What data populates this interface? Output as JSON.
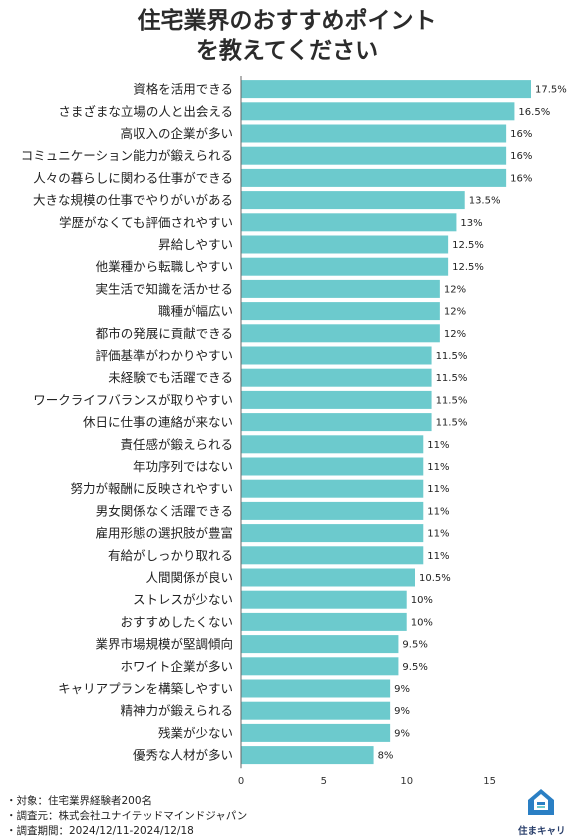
{
  "title_line1": "住宅業界のおすすめポイント",
  "title_line2": "を教えてください",
  "chart_data": {
    "type": "bar",
    "orientation": "horizontal",
    "categories": [
      "資格を活用できる",
      "さまざまな立場の人と出会える",
      "高収入の企業が多い",
      "コミュニケーション能力が鍛えられる",
      "人々の暮らしに関わる仕事ができる",
      "大きな規模の仕事でやりがいがある",
      "学歴がなくても評価されやすい",
      "昇給しやすい",
      "他業種から転職しやすい",
      "実生活で知識を活かせる",
      "職種が幅広い",
      "都市の発展に貢献できる",
      "評価基準がわかりやすい",
      "未経験でも活躍できる",
      "ワークライフバランスが取りやすい",
      "休日に仕事の連絡が来ない",
      "責任感が鍛えられる",
      "年功序列ではない",
      "努力が報酬に反映されやすい",
      "男女関係なく活躍できる",
      "雇用形態の選択肢が豊富",
      "有給がしっかり取れる",
      "人間関係が良い",
      "ストレスが少ない",
      "おすすめしたくない",
      "業界市場規模が堅調傾向",
      "ホワイト企業が多い",
      "キャリアプランを構築しやすい",
      "精神力が鍛えられる",
      "残業が少ない",
      "優秀な人材が多い"
    ],
    "values": [
      17.5,
      16.5,
      16,
      16,
      16,
      13.5,
      13,
      12.5,
      12.5,
      12,
      12,
      12,
      11.5,
      11.5,
      11.5,
      11.5,
      11,
      11,
      11,
      11,
      11,
      11,
      10.5,
      10,
      10,
      9.5,
      9.5,
      9,
      9,
      9,
      8
    ],
    "value_labels": [
      "17.5%",
      "16.5%",
      "16%",
      "16%",
      "16%",
      "13.5%",
      "13%",
      "12.5%",
      "12.5%",
      "12%",
      "12%",
      "12%",
      "11.5%",
      "11.5%",
      "11.5%",
      "11.5%",
      "11%",
      "11%",
      "11%",
      "11%",
      "11%",
      "11%",
      "10.5%",
      "10%",
      "10%",
      "9.5%",
      "9.5%",
      "9%",
      "9%",
      "9%",
      "8%"
    ],
    "xticks": [
      "0",
      "5",
      "10",
      "15"
    ],
    "xlim": [
      0,
      17.5
    ],
    "bar_color": "#6ccacd",
    "grid": false
  },
  "notes": [
    "・対象：住宅業界経験者200名",
    "・調査元：株式会社ユナイテッドマインドジャパン",
    "・調査期間：2024/12/11-2024/12/18"
  ],
  "logo": {
    "icon": "house-logo-icon",
    "text": "住まキャリ"
  }
}
